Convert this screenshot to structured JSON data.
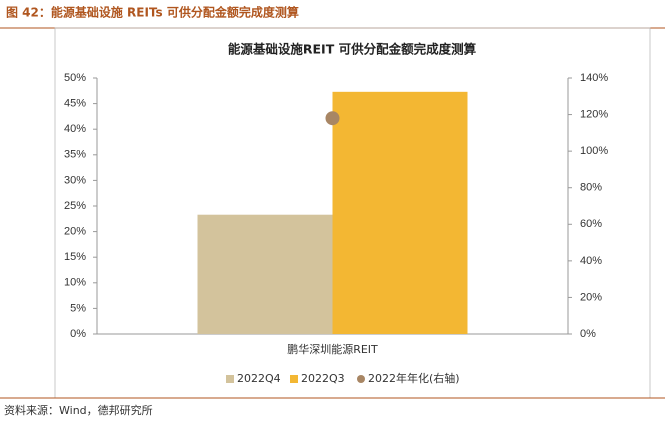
{
  "header": {
    "title": "图 42：能源基础设施 REITs 可供分配金额完成度测算"
  },
  "footer": {
    "source": "资料来源：Wind，德邦研究所"
  },
  "chart_data": {
    "type": "bar",
    "title": "能源基础设施REIT 可供分配金额完成度测算",
    "categories": [
      "鹏华深圳能源REIT"
    ],
    "series": [
      {
        "name": "2022Q4",
        "color": "#d3c39c",
        "values": [
          23.3
        ]
      },
      {
        "name": "2022Q3",
        "color": "#f3b733",
        "values": [
          47.3
        ]
      },
      {
        "name": "2022年年化(右轴)",
        "color": "#a88664",
        "values": [
          118
        ],
        "axis": "y2",
        "type": "scatter"
      }
    ],
    "ylim": [
      0,
      50
    ],
    "yticks": [
      {
        "value": 0,
        "label": "0%"
      },
      {
        "value": 5,
        "label": "5%"
      },
      {
        "value": 10,
        "label": "10%"
      },
      {
        "value": 15,
        "label": "15%"
      },
      {
        "value": 20,
        "label": "20%"
      },
      {
        "value": 25,
        "label": "25%"
      },
      {
        "value": 30,
        "label": "30%"
      },
      {
        "value": 35,
        "label": "35%"
      },
      {
        "value": 40,
        "label": "40%"
      },
      {
        "value": 45,
        "label": "45%"
      },
      {
        "value": 50,
        "label": "50%"
      }
    ],
    "y2lim": [
      0,
      140
    ],
    "y2ticks": [
      {
        "value": 0,
        "label": "0%"
      },
      {
        "value": 20,
        "label": "20%"
      },
      {
        "value": 40,
        "label": "40%"
      },
      {
        "value": 60,
        "label": "60%"
      },
      {
        "value": 80,
        "label": "80%"
      },
      {
        "value": 100,
        "label": "100%"
      },
      {
        "value": 120,
        "label": "120%"
      },
      {
        "value": 140,
        "label": "140%"
      }
    ],
    "legend": "bottom"
  }
}
